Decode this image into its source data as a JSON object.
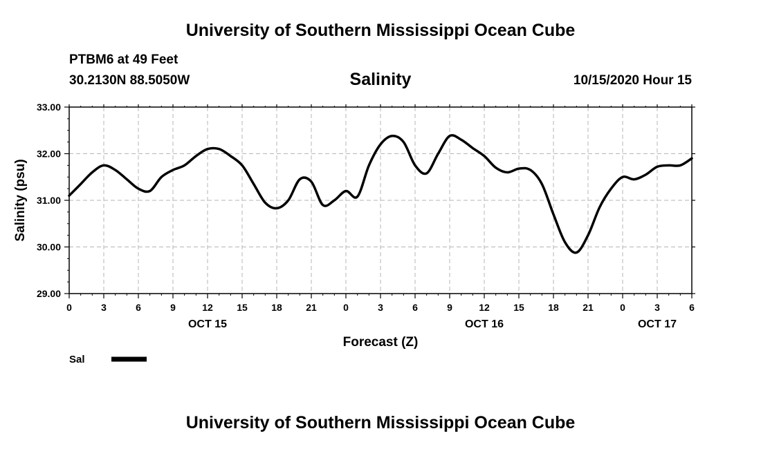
{
  "header": {
    "top_title": "University of Southern Mississippi Ocean Cube",
    "station": "PTBM6 at 49 Feet",
    "coords": "30.2130N 88.5050W",
    "variable": "Salinity",
    "datetime": "10/15/2020 Hour 15"
  },
  "footer": {
    "bottom_title": "University of Southern Mississippi Ocean Cube"
  },
  "chart_data": {
    "type": "line",
    "ylabel": "Salinity (psu)",
    "xlabel": "Forecast (Z)",
    "ylim": [
      29,
      33
    ],
    "yticks": [
      "29.00",
      "30.00",
      "31.00",
      "32.00",
      "33.00"
    ],
    "xlim": [
      0,
      54
    ],
    "xticks": [
      "0",
      "3",
      "6",
      "9",
      "12",
      "15",
      "18",
      "21",
      "0",
      "3",
      "6",
      "9",
      "12",
      "15",
      "18",
      "21",
      "0",
      "3",
      "6"
    ],
    "date_labels": [
      {
        "label": "OCT 15",
        "hour": 12
      },
      {
        "label": "OCT 16",
        "hour": 36
      },
      {
        "label": "OCT 17",
        "hour": 51
      }
    ],
    "grid": true,
    "legend_position": "bottom-left",
    "line_color": "#000000",
    "series": [
      {
        "name": "Sal",
        "x": [
          0,
          1,
          2,
          3,
          4,
          5,
          6,
          7,
          8,
          9,
          10,
          11,
          12,
          13,
          14,
          15,
          16,
          17,
          18,
          19,
          20,
          21,
          22,
          23,
          24,
          25,
          26,
          27,
          28,
          29,
          30,
          31,
          32,
          33,
          34,
          35,
          36,
          37,
          38,
          39,
          40,
          41,
          42,
          43,
          44,
          45,
          46,
          47,
          48,
          49,
          50,
          51,
          52,
          53,
          54
        ],
        "values": [
          31.1,
          31.35,
          31.6,
          31.75,
          31.65,
          31.45,
          31.25,
          31.2,
          31.5,
          31.65,
          31.75,
          31.95,
          32.1,
          32.1,
          31.95,
          31.75,
          31.35,
          30.95,
          30.83,
          31.0,
          31.45,
          31.4,
          30.9,
          31.0,
          31.2,
          31.08,
          31.75,
          32.2,
          32.38,
          32.25,
          31.75,
          31.58,
          32.0,
          32.38,
          32.3,
          32.12,
          31.95,
          31.7,
          31.6,
          31.68,
          31.65,
          31.35,
          30.7,
          30.1,
          29.88,
          30.25,
          30.85,
          31.25,
          31.5,
          31.45,
          31.55,
          31.72,
          31.75,
          31.75,
          31.9
        ]
      }
    ]
  }
}
